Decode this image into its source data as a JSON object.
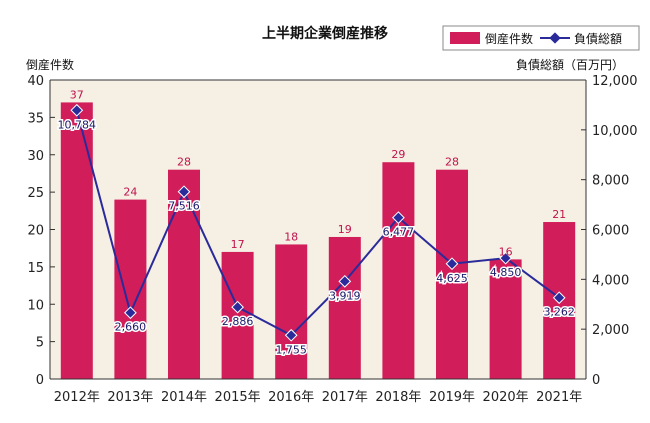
{
  "chart_data": {
    "type": "bar",
    "title": "上半期企業倒産推移",
    "categories": [
      "2012年",
      "2013年",
      "2014年",
      "2015年",
      "2016年",
      "2017年",
      "2018年",
      "2019年",
      "2020年",
      "2021年"
    ],
    "ylabel": "倒産件数",
    "y2label": "負債総額（百万円）",
    "ylim": [
      0,
      40
    ],
    "y2lim": [
      0,
      12000
    ],
    "y_ticks": [
      "0",
      "5",
      "10",
      "15",
      "20",
      "25",
      "30",
      "35",
      "40"
    ],
    "y2_ticks": [
      "0",
      "2,000",
      "4,000",
      "6,000",
      "8,000",
      "10,000",
      "12,000"
    ],
    "series": [
      {
        "name": "倒産件数",
        "type": "bar",
        "axis": "left",
        "color": "#d11d5a",
        "values": [
          37,
          24,
          28,
          17,
          18,
          19,
          29,
          28,
          16,
          21
        ],
        "labels": [
          "37",
          "24",
          "28",
          "17",
          "18",
          "19",
          "29",
          "28",
          "16",
          "21"
        ]
      },
      {
        "name": "負債総額",
        "type": "line",
        "axis": "right",
        "color": "#2a2a9a",
        "values": [
          10784,
          2660,
          7516,
          2886,
          1755,
          3919,
          6477,
          4625,
          4850,
          3262
        ],
        "labels": [
          "10,784",
          "2,660",
          "7,516",
          "2,886",
          "1,755",
          "3,919",
          "6,477",
          "4,625",
          "4,850",
          "3,262"
        ]
      }
    ],
    "legend": {
      "position": "top-right"
    },
    "background": "#f5efe4",
    "grid": false
  }
}
